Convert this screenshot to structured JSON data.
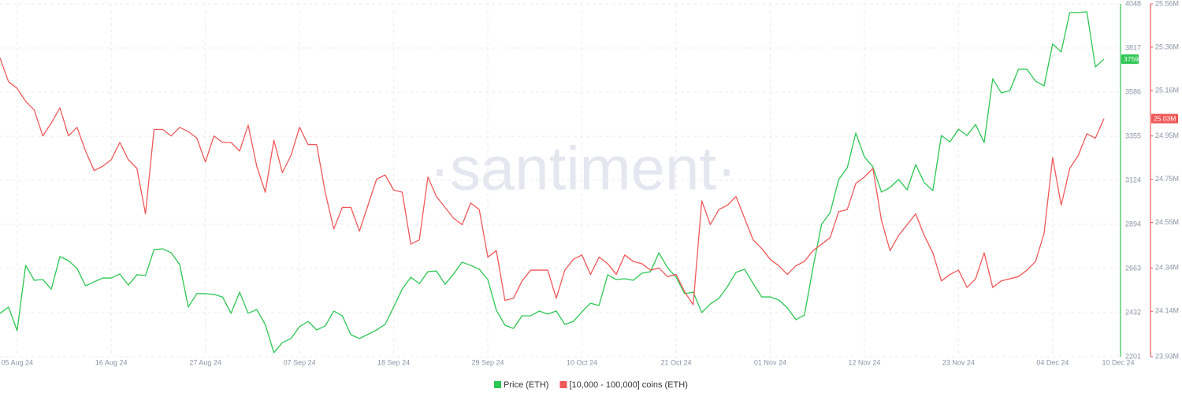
{
  "chart_data": {
    "type": "line",
    "watermark": "·santiment·",
    "x": [
      "2024-08-03",
      "2024-08-04",
      "2024-08-05",
      "2024-08-06",
      "2024-08-07",
      "2024-08-08",
      "2024-08-09",
      "2024-08-10",
      "2024-08-11",
      "2024-08-12",
      "2024-08-13",
      "2024-08-14",
      "2024-08-15",
      "2024-08-16",
      "2024-08-17",
      "2024-08-18",
      "2024-08-19",
      "2024-08-20",
      "2024-08-21",
      "2024-08-22",
      "2024-08-23",
      "2024-08-24",
      "2024-08-25",
      "2024-08-26",
      "2024-08-27",
      "2024-08-28",
      "2024-08-29",
      "2024-08-30",
      "2024-08-31",
      "2024-09-01",
      "2024-09-02",
      "2024-09-03",
      "2024-09-04",
      "2024-09-05",
      "2024-09-06",
      "2024-09-07",
      "2024-09-08",
      "2024-09-09",
      "2024-09-10",
      "2024-09-11",
      "2024-09-12",
      "2024-09-13",
      "2024-09-14",
      "2024-09-15",
      "2024-09-16",
      "2024-09-17",
      "2024-09-18",
      "2024-09-19",
      "2024-09-20",
      "2024-09-21",
      "2024-09-22",
      "2024-09-23",
      "2024-09-24",
      "2024-09-25",
      "2024-09-26",
      "2024-09-27",
      "2024-09-28",
      "2024-09-29",
      "2024-09-30",
      "2024-10-01",
      "2024-10-02",
      "2024-10-03",
      "2024-10-04",
      "2024-10-05",
      "2024-10-06",
      "2024-10-07",
      "2024-10-08",
      "2024-10-09",
      "2024-10-10",
      "2024-10-11",
      "2024-10-12",
      "2024-10-13",
      "2024-10-14",
      "2024-10-15",
      "2024-10-16",
      "2024-10-17",
      "2024-10-18",
      "2024-10-19",
      "2024-10-20",
      "2024-10-21",
      "2024-10-22",
      "2024-10-23",
      "2024-10-24",
      "2024-10-25",
      "2024-10-26",
      "2024-10-27",
      "2024-10-28",
      "2024-10-29",
      "2024-10-30",
      "2024-10-31",
      "2024-11-01",
      "2024-11-02",
      "2024-11-03",
      "2024-11-04",
      "2024-11-05",
      "2024-11-06",
      "2024-11-07",
      "2024-11-08",
      "2024-11-09",
      "2024-11-10",
      "2024-11-11",
      "2024-11-12",
      "2024-11-13",
      "2024-11-14",
      "2024-11-15",
      "2024-11-16",
      "2024-11-17",
      "2024-11-18",
      "2024-11-19",
      "2024-11-20",
      "2024-11-21",
      "2024-11-22",
      "2024-11-23",
      "2024-11-24",
      "2024-11-25",
      "2024-11-26",
      "2024-11-27",
      "2024-11-28",
      "2024-11-29",
      "2024-11-30",
      "2024-12-01",
      "2024-12-02",
      "2024-12-03",
      "2024-12-04",
      "2024-12-05",
      "2024-12-06",
      "2024-12-07",
      "2024-12-08",
      "2024-12-09",
      "2024-12-10"
    ],
    "xlim": [
      "2024-08-03",
      "2024-12-10"
    ],
    "xticks": [
      {
        "value": "2024-08-05",
        "label": "05 Aug 24"
      },
      {
        "value": "2024-08-16",
        "label": "16 Aug 24"
      },
      {
        "value": "2024-08-27",
        "label": "27 Aug 24"
      },
      {
        "value": "2024-09-07",
        "label": "07 Sep 24"
      },
      {
        "value": "2024-09-18",
        "label": "18 Sep 24"
      },
      {
        "value": "2024-09-29",
        "label": "29 Sep 24"
      },
      {
        "value": "2024-10-10",
        "label": "10 Oct 24"
      },
      {
        "value": "2024-10-21",
        "label": "21 Oct 24"
      },
      {
        "value": "2024-11-01",
        "label": "01 Nov 24"
      },
      {
        "value": "2024-11-12",
        "label": "12 Nov 24"
      },
      {
        "value": "2024-11-23",
        "label": "23 Nov 24"
      },
      {
        "value": "2024-12-04",
        "label": "04 Dec 24"
      },
      {
        "value": "2024-12-10",
        "label": "10 Dec 24"
      }
    ],
    "ylim": [
      2201,
      4048
    ],
    "yticks": [
      2201,
      2432,
      2663,
      2894,
      3124,
      3355,
      3586,
      3817,
      4048
    ],
    "y2lim": [
      23930000,
      25560000
    ],
    "y2ticks": [
      {
        "value": 23930000,
        "label": "23.93M"
      },
      {
        "value": 24140000,
        "label": "24.14M"
      },
      {
        "value": 24340000,
        "label": "24.34M"
      },
      {
        "value": 24550000,
        "label": "24.55M"
      },
      {
        "value": 24750000,
        "label": "24.75M"
      },
      {
        "value": 24950000,
        "label": "24.95M"
      },
      {
        "value": 25160000,
        "label": "25.16M"
      },
      {
        "value": 25360000,
        "label": "25.36M"
      },
      {
        "value": 25560000,
        "label": "25.56M"
      }
    ],
    "grid": true,
    "legend": "bottom",
    "series": [
      {
        "name": "Price (ETH)",
        "color": "#2dc653",
        "axis": "y",
        "values": [
          2428,
          2461,
          2337,
          2679,
          2601,
          2605,
          2555,
          2725,
          2704,
          2663,
          2572,
          2593,
          2613,
          2613,
          2634,
          2576,
          2630,
          2626,
          2762,
          2766,
          2745,
          2683,
          2461,
          2531,
          2531,
          2527,
          2514,
          2428,
          2539,
          2428,
          2448,
          2370,
          2222,
          2275,
          2296,
          2358,
          2386,
          2341,
          2362,
          2440,
          2415,
          2316,
          2296,
          2318,
          2341,
          2370,
          2461,
          2555,
          2617,
          2584,
          2646,
          2650,
          2580,
          2634,
          2696,
          2679,
          2659,
          2605,
          2444,
          2366,
          2349,
          2415,
          2415,
          2440,
          2424,
          2440,
          2370,
          2386,
          2436,
          2481,
          2469,
          2630,
          2605,
          2609,
          2601,
          2638,
          2646,
          2745,
          2667,
          2617,
          2531,
          2539,
          2432,
          2477,
          2506,
          2568,
          2642,
          2659,
          2584,
          2514,
          2514,
          2498,
          2457,
          2395,
          2419,
          2667,
          2894,
          2955,
          3129,
          3190,
          3372,
          3248,
          3195,
          3063,
          3087,
          3129,
          3075,
          3207,
          3112,
          3071,
          3359,
          3326,
          3392,
          3359,
          3417,
          3322,
          3656,
          3582,
          3594,
          3706,
          3706,
          3644,
          3619,
          3838,
          3797,
          4003,
          4003,
          4007,
          3718,
          3759
        ],
        "value_labels": [
          null,
          null,
          null,
          null,
          null,
          null,
          null,
          null,
          null,
          null,
          null,
          null,
          null,
          null,
          null,
          null,
          null,
          null,
          null,
          null,
          null,
          null,
          null,
          null,
          null,
          null,
          null,
          null,
          null,
          null,
          null,
          null,
          null,
          null,
          null,
          null,
          null,
          null,
          null,
          null,
          null,
          null,
          null,
          null,
          null,
          null,
          null,
          null,
          null,
          null,
          null,
          null,
          null,
          null,
          null,
          null,
          null,
          null,
          null,
          null,
          null,
          null,
          null,
          null,
          null,
          null,
          null,
          null,
          null,
          null,
          null,
          null,
          null,
          null,
          null,
          null,
          null,
          null,
          null,
          null,
          null,
          null,
          null,
          null,
          null,
          null,
          null,
          null,
          null,
          null,
          null,
          null,
          null,
          null,
          null,
          null,
          null,
          null,
          null,
          null,
          null,
          null,
          null,
          null,
          null,
          null,
          null,
          null,
          null,
          null,
          null,
          null,
          null,
          null,
          null,
          null,
          null,
          null,
          null,
          null,
          null,
          null,
          null,
          null,
          null,
          null,
          null,
          null,
          null,
          "3759"
        ]
      },
      {
        "name": "[10,000 - 100,000] coins (ETH)",
        "color": "#f0595a",
        "axis": "y2",
        "values": [
          25310000,
          25200000,
          25170000,
          25110000,
          25070000,
          24950000,
          25010000,
          25080000,
          24950000,
          24990000,
          24880000,
          24790000,
          24810000,
          24840000,
          24920000,
          24840000,
          24800000,
          24590000,
          24980000,
          24980000,
          24950000,
          24990000,
          24970000,
          24940000,
          24830000,
          24950000,
          24920000,
          24920000,
          24880000,
          25000000,
          24810000,
          24690000,
          24930000,
          24780000,
          24860000,
          24990000,
          24910000,
          24910000,
          24690000,
          24520000,
          24620000,
          24620000,
          24510000,
          24630000,
          24750000,
          24770000,
          24700000,
          24690000,
          24450000,
          24470000,
          24760000,
          24670000,
          24620000,
          24570000,
          24540000,
          24640000,
          24610000,
          24390000,
          24420000,
          24190000,
          24200000,
          24280000,
          24330000,
          24330000,
          24330000,
          24200000,
          24330000,
          24380000,
          24400000,
          24310000,
          24390000,
          24360000,
          24310000,
          24400000,
          24370000,
          24360000,
          24330000,
          24340000,
          24300000,
          24310000,
          24230000,
          24170000,
          24650000,
          24540000,
          24610000,
          24630000,
          24670000,
          24570000,
          24470000,
          24430000,
          24380000,
          24350000,
          24310000,
          24350000,
          24370000,
          24420000,
          24450000,
          24480000,
          24600000,
          24610000,
          24730000,
          24760000,
          24800000,
          24560000,
          24420000,
          24490000,
          24540000,
          24590000,
          24490000,
          24410000,
          24280000,
          24310000,
          24330000,
          24250000,
          24290000,
          24410000,
          24250000,
          24280000,
          24290000,
          24300000,
          24330000,
          24370000,
          24500000,
          24850000,
          24630000,
          24800000,
          24860000,
          24960000,
          24940000,
          25030000
        ],
        "value_labels": [
          null,
          null,
          null,
          null,
          null,
          null,
          null,
          null,
          null,
          null,
          null,
          null,
          null,
          null,
          null,
          null,
          null,
          null,
          null,
          null,
          null,
          null,
          null,
          null,
          null,
          null,
          null,
          null,
          null,
          null,
          null,
          null,
          null,
          null,
          null,
          null,
          null,
          null,
          null,
          null,
          null,
          null,
          null,
          null,
          null,
          null,
          null,
          null,
          null,
          null,
          null,
          null,
          null,
          null,
          null,
          null,
          null,
          null,
          null,
          null,
          null,
          null,
          null,
          null,
          null,
          null,
          null,
          null,
          null,
          null,
          null,
          null,
          null,
          null,
          null,
          null,
          null,
          null,
          null,
          null,
          null,
          null,
          null,
          null,
          null,
          null,
          null,
          null,
          null,
          null,
          null,
          null,
          null,
          null,
          null,
          null,
          null,
          null,
          null,
          null,
          null,
          null,
          null,
          null,
          null,
          null,
          null,
          null,
          null,
          null,
          null,
          null,
          null,
          null,
          null,
          null,
          null,
          null,
          null,
          null,
          null,
          null,
          null,
          null,
          null,
          null,
          null,
          null,
          null,
          "25.03M"
        ]
      }
    ]
  }
}
